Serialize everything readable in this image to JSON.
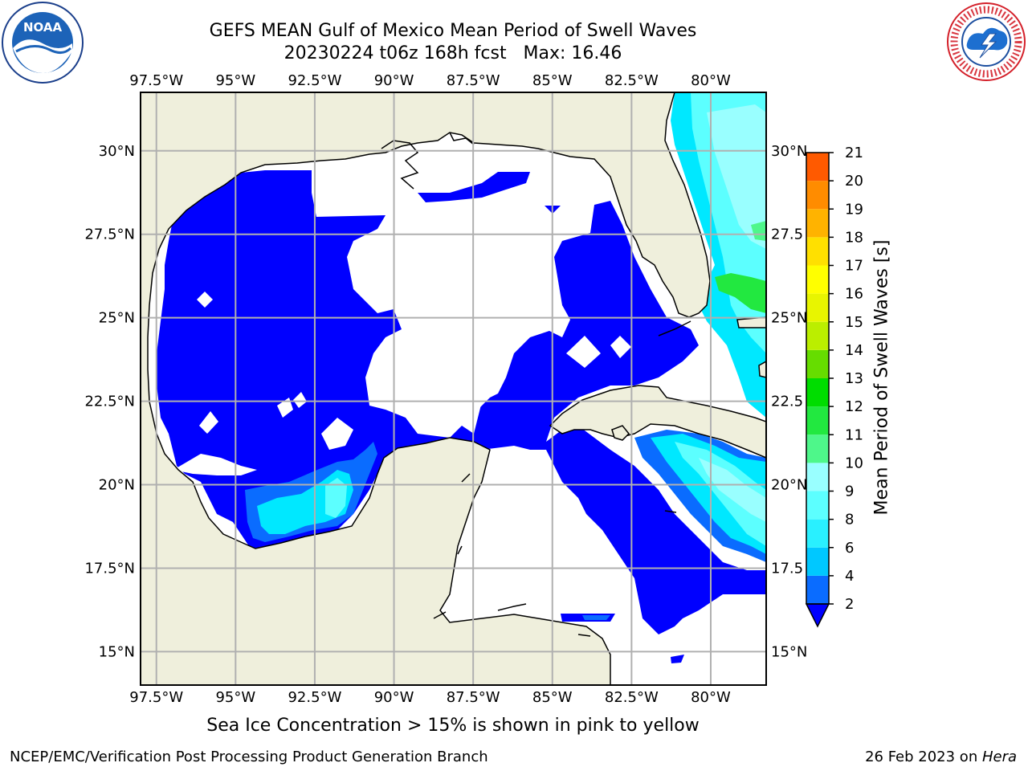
{
  "title_line1": "GEFS MEAN Gulf of Mexico Mean Period of Swell Waves",
  "title_line2": "20230224 t06z 168h fcst   Max: 16.46",
  "note": "Sea Ice Concentration > 15% is shown in pink to yellow",
  "footer_left": "NCEP/EMC/Verification Post Processing Product Generation Branch",
  "footer_right_date": "26 Feb 2023 on ",
  "footer_right_machine": "Hera",
  "logos": {
    "left": "NOAA",
    "right": "NATIONAL WEATHER SERVICE"
  },
  "axes": {
    "lon_ticks": [
      "97.5°W",
      "95°W",
      "92.5°W",
      "90°W",
      "87.5°W",
      "85°W",
      "82.5°W",
      "80°W"
    ],
    "lon_values": [
      -97.5,
      -95,
      -92.5,
      -90,
      -87.5,
      -85,
      -82.5,
      -80
    ],
    "lat_ticks_left": [
      "30°N",
      "27.5°N",
      "25°N",
      "22.5°N",
      "20°N",
      "17.5°N",
      "15°N"
    ],
    "lat_ticks_right": [
      "30°N",
      "27.5",
      "25°N",
      "22.5",
      "20°N",
      "17.5",
      "15°N"
    ],
    "lat_values": [
      30,
      27.5,
      25,
      22.5,
      20,
      17.5,
      15
    ],
    "extent": {
      "lon_min": -98,
      "lon_max": -78.25,
      "lat_min": 14,
      "lat_max": 31.75
    }
  },
  "colorbar": {
    "label": "Mean Period of Swell Waves [s]",
    "ticks": [
      "21",
      "20",
      "19",
      "18",
      "17",
      "16",
      "15",
      "14",
      "13",
      "12",
      "11",
      "10",
      "9",
      "8",
      "6",
      "4",
      "2"
    ],
    "levels": [
      2,
      4,
      6,
      8,
      9,
      10,
      11,
      12,
      13,
      14,
      15,
      16,
      17,
      18,
      19,
      20,
      21
    ],
    "colors": [
      "#0a6cff",
      "#00c8ff",
      "#29f0ff",
      "#5cffff",
      "#99ffff",
      "#4ef78a",
      "#22e840",
      "#00dd00",
      "#66dd00",
      "#bbee00",
      "#e8f500",
      "#ffff00",
      "#ffe000",
      "#ffb300",
      "#ff8c00",
      "#ff5a00",
      "#ff2800",
      "#ff0000"
    ],
    "below_color": "#0000ff"
  },
  "colors": {
    "land": "#efefdc",
    "grid": "#b0b0b0",
    "zero": "#ffffff"
  }
}
